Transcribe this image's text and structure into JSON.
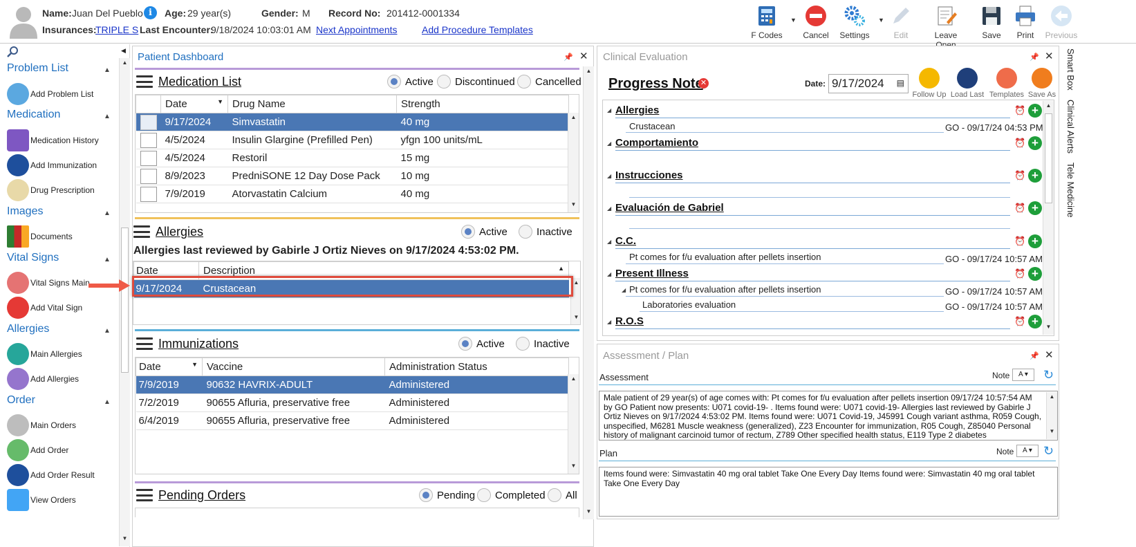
{
  "header": {
    "name_label": "Name:",
    "name": "Juan Del Pueblo",
    "age_label": "Age:",
    "age": "29 year(s)",
    "gender_label": "Gender:",
    "gender": "M",
    "record_label": "Record No:",
    "record": "201412-0001334",
    "ins_label": "Insurances:",
    "ins": "TRIPLE S",
    "last_label": "Last Encounter:",
    "last": "9/18/2024 10:03:01 AM",
    "next_appt": "Next Appointments",
    "add_proc": "Add Procedure Templates"
  },
  "toolbar": {
    "fcodes": "F Codes",
    "cancel": "Cancel",
    "settings": "Settings",
    "edit": "Edit",
    "leave_open": "Leave Open",
    "save": "Save",
    "print": "Print",
    "previous": "Previous"
  },
  "sidebar": {
    "problem_list": "Problem List",
    "add_problem": "Add Problem List",
    "medication": "Medication",
    "med_history": "Medication History",
    "add_immun": "Add Immunization",
    "drug_rx": "Drug Prescription",
    "images": "Images",
    "documents": "Documents",
    "vital_signs": "Vital Signs",
    "vital_main": "Vital Signs Main",
    "add_vital": "Add Vital Sign",
    "allergies": "Allergies",
    "main_allergies": "Main Allergies",
    "add_allergies": "Add Allergies",
    "order": "Order",
    "main_orders": "Main Orders",
    "add_order": "Add Order",
    "add_order_result": "Add Order Result",
    "view_orders": "View Orders"
  },
  "dashboard": {
    "title": "Patient Dashboard",
    "med": {
      "title": "Medication List",
      "radios": [
        "Active",
        "Discontinued",
        "Cancelled"
      ],
      "cols": [
        "Date",
        "Drug Name",
        "Strength"
      ],
      "rows": [
        [
          "9/17/2024",
          "Simvastatin",
          "40 mg"
        ],
        [
          "4/5/2024",
          "Insulin Glargine (Prefilled Pen)",
          "yfgn 100 units/mL"
        ],
        [
          "4/5/2024",
          "Restoril",
          "15 mg"
        ],
        [
          "8/9/2023",
          "PredniSONE 12 Day Dose Pack",
          "10 mg"
        ],
        [
          "7/9/2019",
          "Atorvastatin Calcium",
          "40 mg"
        ]
      ]
    },
    "allergy": {
      "title": "Allergies",
      "radios": [
        "Active",
        "Inactive"
      ],
      "reviewed": "Allergies last reviewed by Gabirle J Ortiz Nieves on 9/17/2024 4:53:02 PM.",
      "cols": [
        "Date",
        "Description"
      ],
      "rows": [
        [
          "9/17/2024",
          "Crustacean"
        ]
      ]
    },
    "immun": {
      "title": "Immunizations",
      "radios": [
        "Active",
        "Inactive"
      ],
      "cols": [
        "Date",
        "Vaccine",
        "Administration Status"
      ],
      "rows": [
        [
          "7/9/2019",
          "90632 HAVRIX-ADULT",
          "Administered"
        ],
        [
          "7/2/2019",
          "90655 Afluria, preservative free",
          "Administered"
        ],
        [
          "6/4/2019",
          "90655 Afluria, preservative free",
          "Administered"
        ]
      ]
    },
    "pending": {
      "title": "Pending Orders",
      "radios": [
        "Pending",
        "Completed",
        "All"
      ]
    }
  },
  "clinical": {
    "title": "Clinical Evaluation",
    "note_title": "Progress Note",
    "date_label": "Date:",
    "date": "9/17/2024",
    "actions": [
      "Follow Up",
      "Load Last",
      "Templates",
      "Save As"
    ],
    "sections": {
      "allergies": "Allergies",
      "allergies_item": "Crustacean",
      "allergies_meta": "GO - 09/17/24 04:53 PM",
      "comport": "Comportamiento",
      "instr": "Instrucciones",
      "eval": "Evaluación de Gabriel",
      "cc": "C.C.",
      "cc_item": "Pt comes for f/u evaluation after pellets insertion",
      "cc_meta": "GO - 09/17/24 10:57 AM",
      "pi": "Present Illness",
      "pi_item": "Pt comes for f/u evaluation after pellets insertion",
      "pi_meta": "GO - 09/17/24 10:57 AM",
      "pi_sub": "Laboratories evaluation",
      "pi_sub_meta": "GO - 09/17/24 10:57 AM",
      "ros": "R.O.S"
    }
  },
  "assessment": {
    "title": "Assessment / Plan",
    "assess_label": "Assessment",
    "note_label": "Note",
    "assess_text": "Male patient of 29 year(s) of age comes with:    Pt comes for f/u evaluation after pellets insertion   09/17/24 10:57:54 AM by GO   Patient now presents:  U071 covid-19- . Items found were:  U071 covid-19-    Allergies last reviewed by Gabirle J Ortiz Nieves on 9/17/2024 4:53:02 PM.     Items found were:  U071 Covid-19, J45991 Cough variant asthma, R059 Cough, unspecified, M6281 Muscle weakness (generalized), Z23 Encounter for immunization, R05 Cough, Z85040 Personal history of malignant carcinoid tumor of rectum, Z789 Other specified health status, E119 Type 2 diabetes",
    "plan_label": "Plan",
    "plan_text": "  Items found were:  Simvastatin 40 mg oral tablet Take One Every Day   Items found were:  Simvastatin 40 mg oral tablet Take One Every Day"
  },
  "right_tabs": [
    "Smart Box",
    "Clinical Alerts",
    "Tele Medicine"
  ]
}
